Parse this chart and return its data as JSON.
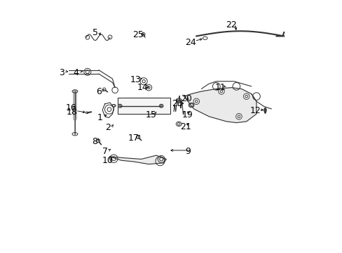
{
  "background_color": "#ffffff",
  "font_size": 9,
  "label_color": "#000000",
  "dgray": "#333333",
  "lgray": "#aaaaaa",
  "lw": 0.8
}
